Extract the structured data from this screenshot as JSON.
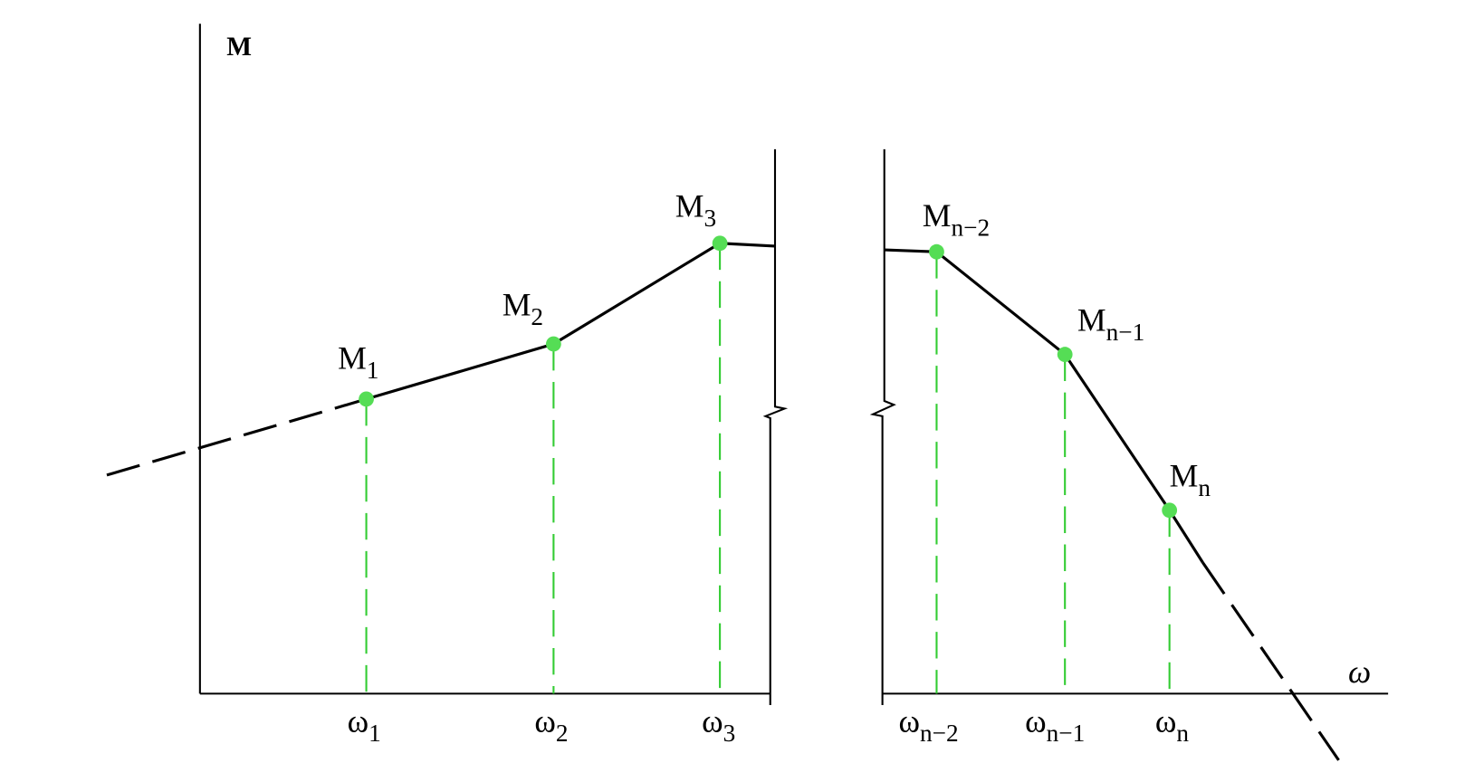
{
  "axes": {
    "y_label": "M",
    "x_label": "ω"
  },
  "points": [
    {
      "m": "M",
      "m_sub": "1",
      "w": "ω",
      "w_sub": "1"
    },
    {
      "m": "M",
      "m_sub": "2",
      "w": "ω",
      "w_sub": "2"
    },
    {
      "m": "M",
      "m_sub": "3",
      "w": "ω",
      "w_sub": "3"
    },
    {
      "m": "M",
      "m_sub": "n−2",
      "w": "ω",
      "w_sub": "n−2"
    },
    {
      "m": "M",
      "m_sub": "n−1",
      "w": "ω",
      "w_sub": "n−1"
    },
    {
      "m": "M",
      "m_sub": "n",
      "w": "ω",
      "w_sub": "n"
    }
  ]
}
